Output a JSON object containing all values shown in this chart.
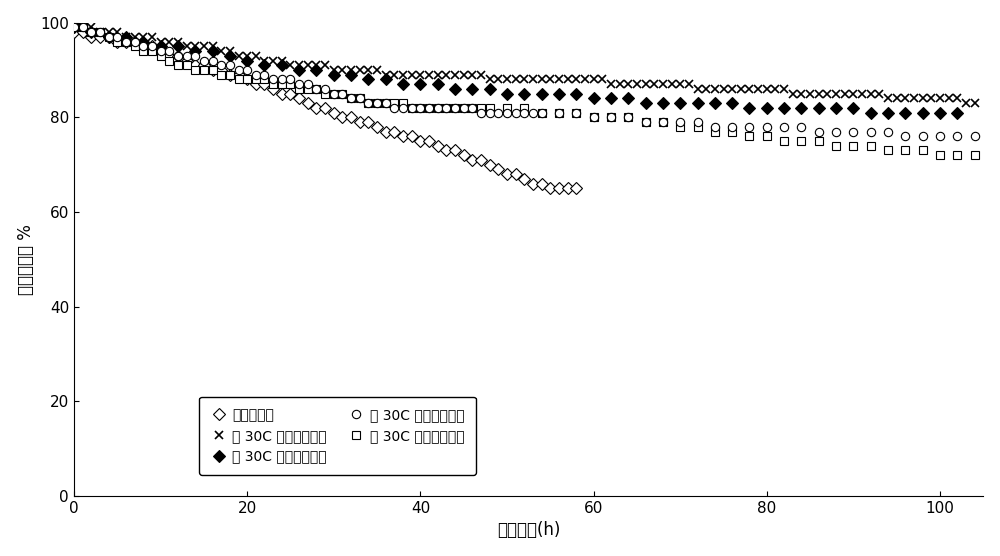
{
  "title": "",
  "xlabel": "运行时间(h)",
  "ylabel": "丙烯选择性 %",
  "xlim": [
    0,
    105
  ],
  "ylim": [
    0,
    100
  ],
  "xticks": [
    0,
    20,
    40,
    60,
    80,
    100
  ],
  "yticks": [
    0,
    20,
    40,
    60,
    80,
    100
  ],
  "background_color": "#ffffff",
  "series": {
    "conventional": {
      "label": "常规预处理",
      "marker": "D",
      "filled": false,
      "x": [
        0,
        1,
        2,
        3,
        4,
        5,
        6,
        7,
        8,
        9,
        10,
        11,
        12,
        13,
        14,
        15,
        16,
        17,
        18,
        19,
        20,
        21,
        22,
        23,
        24,
        25,
        26,
        27,
        28,
        29,
        30,
        31,
        32,
        33,
        34,
        35,
        36,
        37,
        38,
        39,
        40,
        41,
        42,
        43,
        44,
        45,
        46,
        47,
        48,
        49,
        50,
        51,
        52,
        53,
        54,
        55,
        56,
        57,
        58
      ],
      "y": [
        98,
        98,
        97,
        97,
        97,
        96,
        96,
        96,
        95,
        95,
        94,
        93,
        93,
        92,
        91,
        91,
        90,
        90,
        89,
        89,
        88,
        87,
        87,
        86,
        85,
        85,
        84,
        83,
        82,
        82,
        81,
        80,
        80,
        79,
        79,
        78,
        77,
        77,
        76,
        76,
        75,
        75,
        74,
        73,
        73,
        72,
        71,
        71,
        70,
        69,
        68,
        68,
        67,
        66,
        66,
        65,
        65,
        65,
        65
      ]
    },
    "propane": {
      "label": "在 30C 下预处理丙烷",
      "marker": "D",
      "filled": true,
      "x": [
        0,
        2,
        4,
        6,
        8,
        10,
        12,
        14,
        16,
        18,
        20,
        22,
        24,
        26,
        28,
        30,
        32,
        34,
        36,
        38,
        40,
        42,
        44,
        46,
        48,
        50,
        52,
        54,
        56,
        58,
        60,
        62,
        64,
        66,
        68,
        70,
        72,
        74,
        76,
        78,
        80,
        82,
        84,
        86,
        88,
        90,
        92,
        94,
        96,
        98,
        100,
        102
      ],
      "y": [
        99,
        98,
        97,
        97,
        96,
        95,
        95,
        94,
        94,
        93,
        92,
        91,
        91,
        90,
        90,
        89,
        89,
        88,
        88,
        87,
        87,
        87,
        86,
        86,
        86,
        85,
        85,
        85,
        85,
        85,
        84,
        84,
        84,
        83,
        83,
        83,
        83,
        83,
        83,
        82,
        82,
        82,
        82,
        82,
        82,
        82,
        81,
        81,
        81,
        81,
        81,
        81
      ]
    },
    "propylene": {
      "label": "在 30C 下预处理丙烯",
      "marker": "s",
      "filled": false,
      "x": [
        0,
        1,
        2,
        3,
        4,
        5,
        6,
        7,
        8,
        9,
        10,
        11,
        12,
        13,
        14,
        15,
        16,
        17,
        18,
        19,
        20,
        21,
        22,
        23,
        24,
        25,
        26,
        27,
        28,
        29,
        30,
        31,
        32,
        33,
        34,
        35,
        36,
        37,
        38,
        39,
        40,
        41,
        42,
        43,
        44,
        45,
        46,
        47,
        48,
        50,
        52,
        54,
        56,
        58,
        60,
        62,
        64,
        66,
        68,
        70,
        72,
        74,
        76,
        78,
        80,
        82,
        84,
        86,
        88,
        90,
        92,
        94,
        96,
        98,
        100,
        102,
        104
      ],
      "y": [
        99,
        99,
        98,
        98,
        97,
        96,
        96,
        95,
        94,
        94,
        93,
        92,
        91,
        91,
        90,
        90,
        90,
        89,
        89,
        88,
        88,
        88,
        88,
        87,
        87,
        87,
        86,
        86,
        86,
        85,
        85,
        85,
        84,
        84,
        83,
        83,
        83,
        83,
        83,
        82,
        82,
        82,
        82,
        82,
        82,
        82,
        82,
        82,
        82,
        82,
        82,
        81,
        81,
        81,
        80,
        80,
        80,
        79,
        79,
        78,
        78,
        77,
        77,
        76,
        76,
        75,
        75,
        75,
        74,
        74,
        74,
        73,
        73,
        73,
        72,
        72,
        72
      ]
    },
    "ethylene": {
      "label": "在 30C 下预处理乙烯",
      "marker": "x",
      "filled": false,
      "x": [
        0,
        1,
        2,
        3,
        4,
        5,
        6,
        7,
        8,
        9,
        10,
        11,
        12,
        13,
        14,
        15,
        16,
        17,
        18,
        19,
        20,
        21,
        22,
        23,
        24,
        25,
        26,
        27,
        28,
        29,
        30,
        31,
        32,
        33,
        34,
        35,
        36,
        37,
        38,
        39,
        40,
        41,
        42,
        43,
        44,
        45,
        46,
        47,
        48,
        49,
        50,
        51,
        52,
        53,
        54,
        55,
        56,
        57,
        58,
        59,
        60,
        61,
        62,
        63,
        64,
        65,
        66,
        67,
        68,
        69,
        70,
        71,
        72,
        73,
        74,
        75,
        76,
        77,
        78,
        79,
        80,
        81,
        82,
        83,
        84,
        85,
        86,
        87,
        88,
        89,
        90,
        91,
        92,
        93,
        94,
        95,
        96,
        97,
        98,
        99,
        100,
        101,
        102,
        103,
        104
      ],
      "y": [
        99,
        99,
        99,
        98,
        98,
        98,
        97,
        97,
        97,
        97,
        96,
        96,
        96,
        95,
        95,
        95,
        95,
        94,
        94,
        93,
        93,
        93,
        92,
        92,
        92,
        91,
        91,
        91,
        91,
        91,
        90,
        90,
        90,
        90,
        90,
        90,
        89,
        89,
        89,
        89,
        89,
        89,
        89,
        89,
        89,
        89,
        89,
        89,
        88,
        88,
        88,
        88,
        88,
        88,
        88,
        88,
        88,
        88,
        88,
        88,
        88,
        88,
        87,
        87,
        87,
        87,
        87,
        87,
        87,
        87,
        87,
        87,
        86,
        86,
        86,
        86,
        86,
        86,
        86,
        86,
        86,
        86,
        86,
        85,
        85,
        85,
        85,
        85,
        85,
        85,
        85,
        85,
        85,
        85,
        84,
        84,
        84,
        84,
        84,
        84,
        84,
        84,
        84,
        83,
        83
      ]
    },
    "ethane": {
      "label": "在 30C 下预处理乙烷",
      "marker": "o",
      "filled": false,
      "x": [
        0,
        1,
        2,
        3,
        4,
        5,
        6,
        7,
        8,
        9,
        10,
        11,
        12,
        13,
        14,
        15,
        16,
        17,
        18,
        19,
        20,
        21,
        22,
        23,
        24,
        25,
        26,
        27,
        28,
        29,
        30,
        31,
        32,
        33,
        34,
        35,
        36,
        37,
        38,
        39,
        40,
        41,
        42,
        43,
        44,
        45,
        46,
        47,
        48,
        49,
        50,
        51,
        52,
        53,
        54,
        56,
        58,
        60,
        62,
        64,
        66,
        68,
        70,
        72,
        74,
        76,
        78,
        80,
        82,
        84,
        86,
        88,
        90,
        92,
        94,
        96,
        98,
        100,
        102,
        104
      ],
      "y": [
        99,
        99,
        98,
        98,
        97,
        97,
        96,
        96,
        95,
        95,
        94,
        94,
        93,
        93,
        93,
        92,
        92,
        91,
        91,
        90,
        90,
        89,
        89,
        88,
        88,
        88,
        87,
        87,
        86,
        86,
        85,
        85,
        84,
        84,
        83,
        83,
        83,
        82,
        82,
        82,
        82,
        82,
        82,
        82,
        82,
        82,
        82,
        81,
        81,
        81,
        81,
        81,
        81,
        81,
        81,
        81,
        81,
        80,
        80,
        80,
        79,
        79,
        79,
        79,
        78,
        78,
        78,
        78,
        78,
        78,
        77,
        77,
        77,
        77,
        77,
        76,
        76,
        76,
        76,
        76
      ]
    }
  }
}
